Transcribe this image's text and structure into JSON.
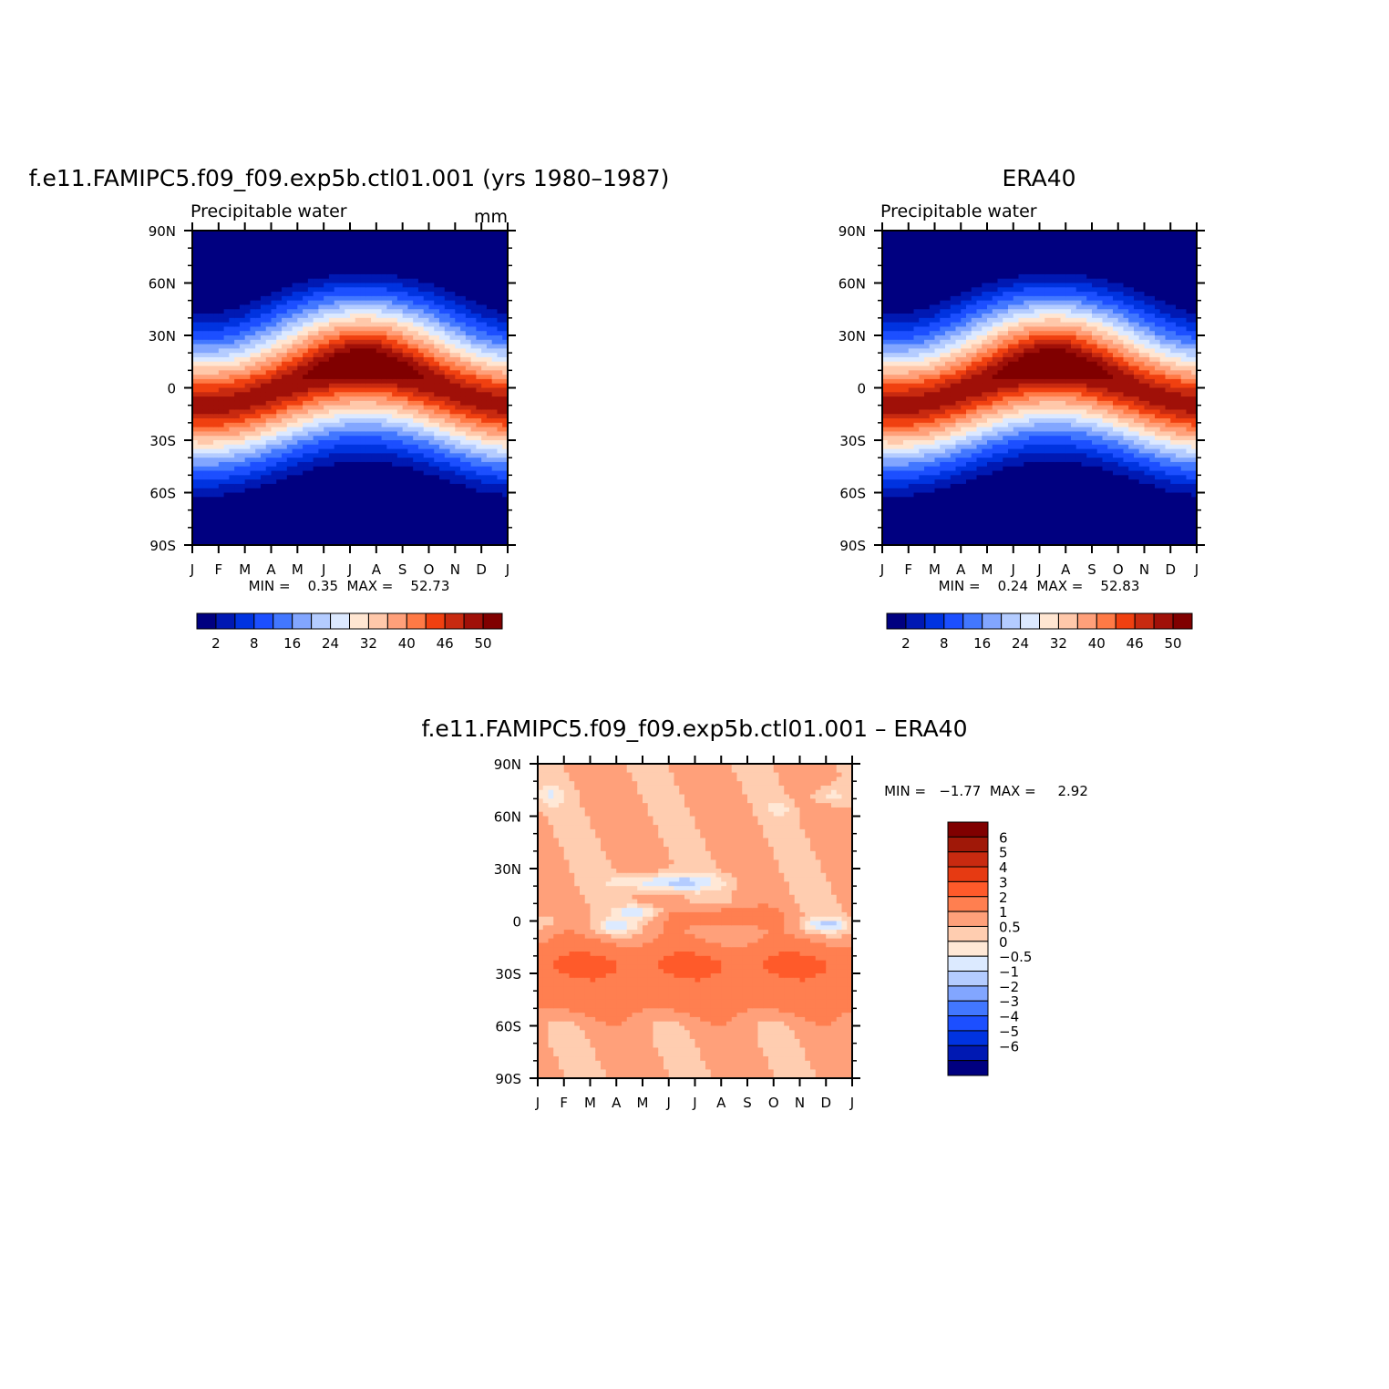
{
  "chart_data": [
    {
      "type": "heatmap",
      "title": "f.e11.FAMIPC5.f09_f09.exp5b.ctl01.001 (yrs 1980–1987)",
      "subtitle": "Precipitable water",
      "units": "mm",
      "x_ticks": [
        "J",
        "F",
        "M",
        "A",
        "M",
        "J",
        "J",
        "A",
        "S",
        "O",
        "N",
        "D",
        "J"
      ],
      "y_ticks": [
        "90N",
        "60N",
        "30N",
        "0",
        "30S",
        "60S",
        "90S"
      ],
      "ylim": [
        -90,
        90
      ],
      "stats_text": "MIN =    0.35  MAX =    52.73",
      "min": 0.35,
      "max": 52.73,
      "itcz_amplitude": 10,
      "colorbar": {
        "orientation": "horizontal",
        "labels": [
          "2",
          "8",
          "16",
          "24",
          "32",
          "40",
          "46",
          "50"
        ],
        "colors": [
          "#000080",
          "#0019b3",
          "#0033e0",
          "#1c4fff",
          "#4277ff",
          "#82a6ff",
          "#b4ccff",
          "#dce9ff",
          "#ffe6d2",
          "#ffc8aa",
          "#ffa07a",
          "#ff7a46",
          "#f04010",
          "#c82a10",
          "#a01008",
          "#800000"
        ]
      }
    },
    {
      "type": "heatmap",
      "title": "ERA40",
      "subtitle": "Precipitable water",
      "x_ticks": [
        "J",
        "F",
        "M",
        "A",
        "M",
        "J",
        "J",
        "A",
        "S",
        "O",
        "N",
        "D",
        "J"
      ],
      "y_ticks": [
        "90N",
        "60N",
        "30N",
        "0",
        "30S",
        "60S",
        "90S"
      ],
      "ylim": [
        -90,
        90
      ],
      "stats_text": "MIN =    0.24  MAX =    52.83",
      "min": 0.24,
      "max": 52.83,
      "itcz_amplitude": 10,
      "colorbar": {
        "orientation": "horizontal",
        "labels": [
          "2",
          "8",
          "16",
          "24",
          "32",
          "40",
          "46",
          "50"
        ],
        "colors": [
          "#000080",
          "#0019b3",
          "#0033e0",
          "#1c4fff",
          "#4277ff",
          "#82a6ff",
          "#b4ccff",
          "#dce9ff",
          "#ffe6d2",
          "#ffc8aa",
          "#ffa07a",
          "#ff7a46",
          "#f04010",
          "#c82a10",
          "#a01008",
          "#800000"
        ]
      }
    },
    {
      "type": "heatmap",
      "title": "f.e11.FAMIPC5.f09_f09.exp5b.ctl01.001  –  ERA40",
      "x_ticks": [
        "J",
        "F",
        "M",
        "A",
        "M",
        "J",
        "J",
        "A",
        "S",
        "O",
        "N",
        "D",
        "J"
      ],
      "y_ticks": [
        "90N",
        "60N",
        "30N",
        "0",
        "30S",
        "60S",
        "90S"
      ],
      "ylim": [
        -90,
        90
      ],
      "stats_text": "MIN =   −1.77  MAX =     2.92",
      "min": -1.77,
      "max": 2.92,
      "colorbar": {
        "orientation": "vertical",
        "labels": [
          "6",
          "5",
          "4",
          "3",
          "2",
          "1",
          "0.5",
          "0",
          "−0.5",
          "−1",
          "−2",
          "−3",
          "−4",
          "−5",
          "−6"
        ],
        "levels": [
          6,
          5,
          4,
          3,
          2,
          1,
          0.5,
          0,
          -0.5,
          -1,
          -2,
          -3,
          -4,
          -5,
          -6
        ],
        "colors": [
          "#800000",
          "#a01808",
          "#c82a10",
          "#e63a12",
          "#ff5a2a",
          "#ff7f50",
          "#ffa07a",
          "#ffcdb0",
          "#ffe8d6",
          "#dceaff",
          "#b4ccff",
          "#82a6ff",
          "#4277ff",
          "#1c4fff",
          "#0033e0",
          "#0019b3",
          "#000080"
        ]
      }
    }
  ]
}
